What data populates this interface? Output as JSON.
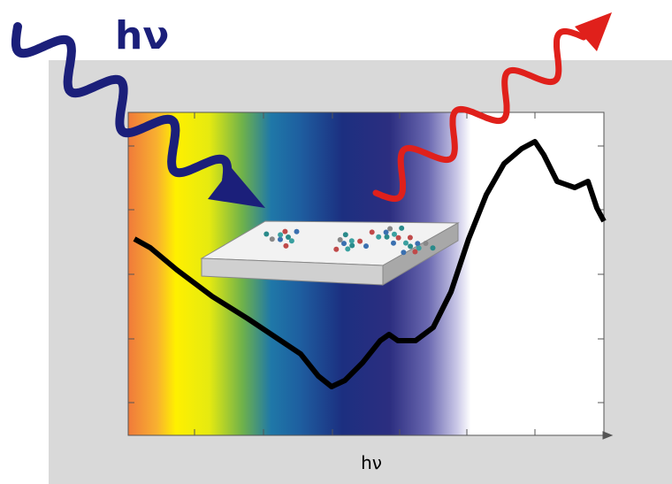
{
  "labels": {
    "incident": "hν",
    "axis": "hν"
  }
}
